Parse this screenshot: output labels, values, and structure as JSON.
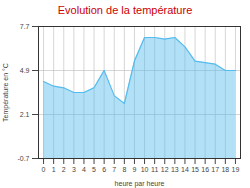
{
  "chart_data": {
    "type": "area",
    "title": "Evolution de la température",
    "xlabel": "heure par heure",
    "ylabel": "Température en °C",
    "x": [
      0,
      1,
      2,
      3,
      4,
      5,
      6,
      7,
      8,
      9,
      10,
      11,
      12,
      13,
      14,
      15,
      16,
      17,
      18,
      19
    ],
    "values": [
      4.2,
      3.9,
      3.8,
      3.5,
      3.5,
      3.8,
      4.9,
      3.3,
      2.8,
      5.5,
      7.0,
      7.0,
      6.9,
      7.0,
      6.4,
      5.5,
      5.4,
      5.3,
      4.9,
      4.9
    ],
    "xlim": [
      -0.5,
      19.5
    ],
    "xticks": [
      0,
      1,
      2,
      3,
      4,
      5,
      6,
      7,
      8,
      9,
      10,
      11,
      12,
      13,
      14,
      15,
      16,
      17,
      18,
      19
    ],
    "ylim": [
      -0.7,
      7.7
    ],
    "yticks": [
      -0.7,
      2.1,
      4.9,
      7.7
    ],
    "color": "#55bbee",
    "grid": true
  }
}
